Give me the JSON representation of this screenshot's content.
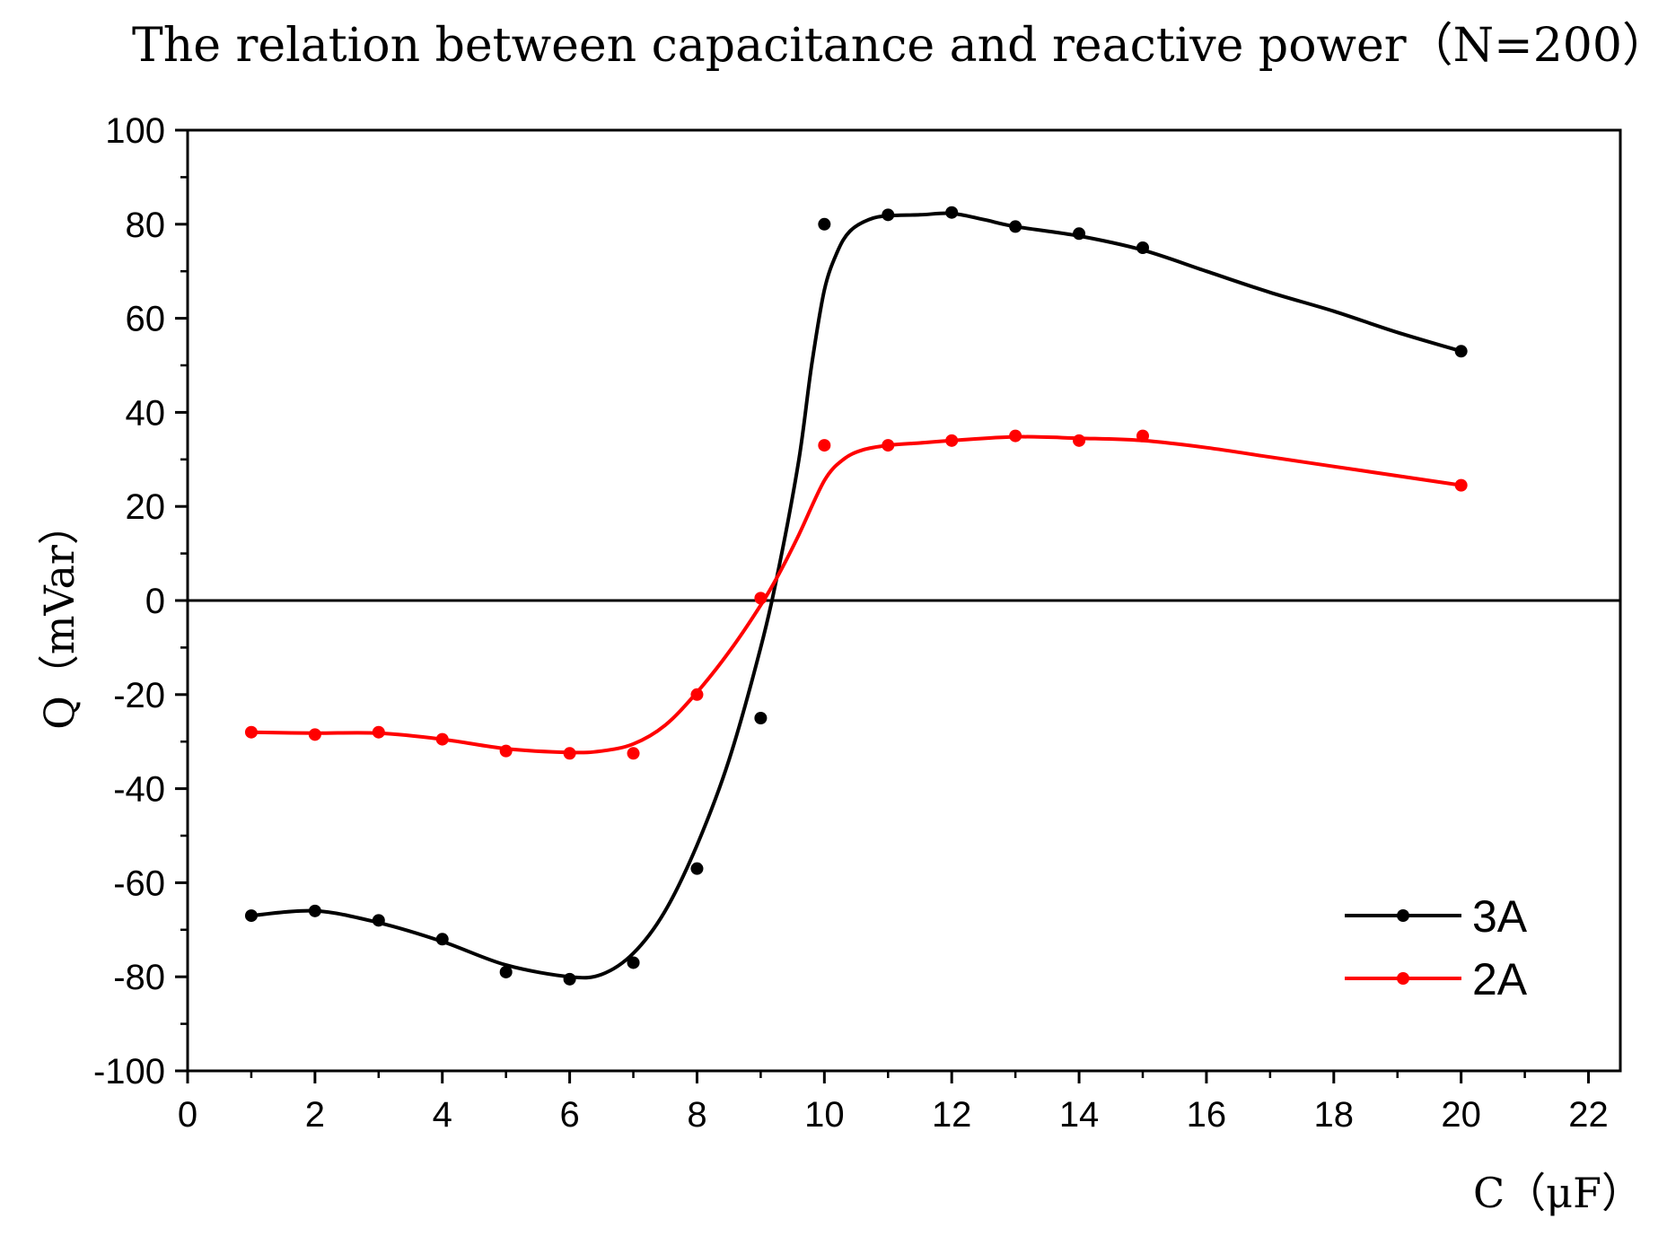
{
  "chart_data": {
    "type": "line",
    "title": "The relation between capacitance and reactive power（N=200）",
    "xlabel": "C（μF）",
    "ylabel": "Q（mVar）",
    "xlim": [
      0,
      22.5
    ],
    "ylim": [
      -100,
      100
    ],
    "xticks": [
      0,
      2,
      4,
      6,
      8,
      10,
      12,
      14,
      16,
      18,
      20,
      22
    ],
    "yticks": [
      100,
      80,
      60,
      40,
      20,
      0,
      -20,
      -40,
      -60,
      -80,
      -100
    ],
    "zero_line": true,
    "legend_position": "bottom-right",
    "series": [
      {
        "name": "3A",
        "color": "#000000",
        "x": [
          1,
          2,
          3,
          4,
          5,
          6,
          7,
          8,
          9,
          10,
          11,
          12,
          13,
          14,
          15,
          20
        ],
        "y": [
          -67,
          -66,
          -68,
          -72,
          -79,
          -80.5,
          -77,
          -57,
          -25,
          80,
          82,
          82.5,
          79.5,
          78,
          75,
          53
        ],
        "curve_x": [
          1,
          2,
          3,
          4,
          5,
          6,
          6.5,
          7,
          7.5,
          8,
          8.5,
          9,
          9.3,
          9.6,
          9.8,
          10,
          10.2,
          10.4,
          10.7,
          11,
          11.5,
          12,
          12.5,
          13,
          14,
          15,
          16,
          17,
          18,
          19,
          20
        ],
        "curve_y": [
          -67,
          -66,
          -68.5,
          -72.5,
          -77.5,
          -80,
          -79.5,
          -75,
          -66,
          -52,
          -34,
          -10,
          8,
          30,
          50,
          66,
          74,
          78.5,
          81,
          81.8,
          82,
          82.3,
          81,
          79.5,
          77.5,
          74.5,
          70,
          65.5,
          61.5,
          57,
          53
        ]
      },
      {
        "name": "2A",
        "color": "#ff0000",
        "x": [
          1,
          2,
          3,
          4,
          5,
          6,
          7,
          8,
          9,
          10,
          11,
          12,
          13,
          14,
          15,
          20
        ],
        "y": [
          -28,
          -28.5,
          -28,
          -29.5,
          -32,
          -32.5,
          -32.5,
          -20,
          0.5,
          33,
          33,
          34,
          35,
          34,
          35,
          24.5
        ],
        "curve_x": [
          1,
          2,
          3,
          4,
          5,
          6,
          6.5,
          7,
          7.5,
          8,
          8.5,
          9,
          9.3,
          9.6,
          10,
          10.3,
          10.6,
          11,
          11.5,
          12,
          13,
          14,
          15,
          16,
          17,
          18,
          19,
          20
        ],
        "curve_y": [
          -28,
          -28.2,
          -28.2,
          -29.5,
          -31.5,
          -32.3,
          -32,
          -30.5,
          -26.5,
          -19.5,
          -11,
          -1,
          6,
          14,
          25.5,
          30,
          32,
          33,
          33.5,
          34,
          34.8,
          34.5,
          34,
          32.5,
          30.5,
          28.5,
          26.5,
          24.5
        ]
      }
    ]
  }
}
